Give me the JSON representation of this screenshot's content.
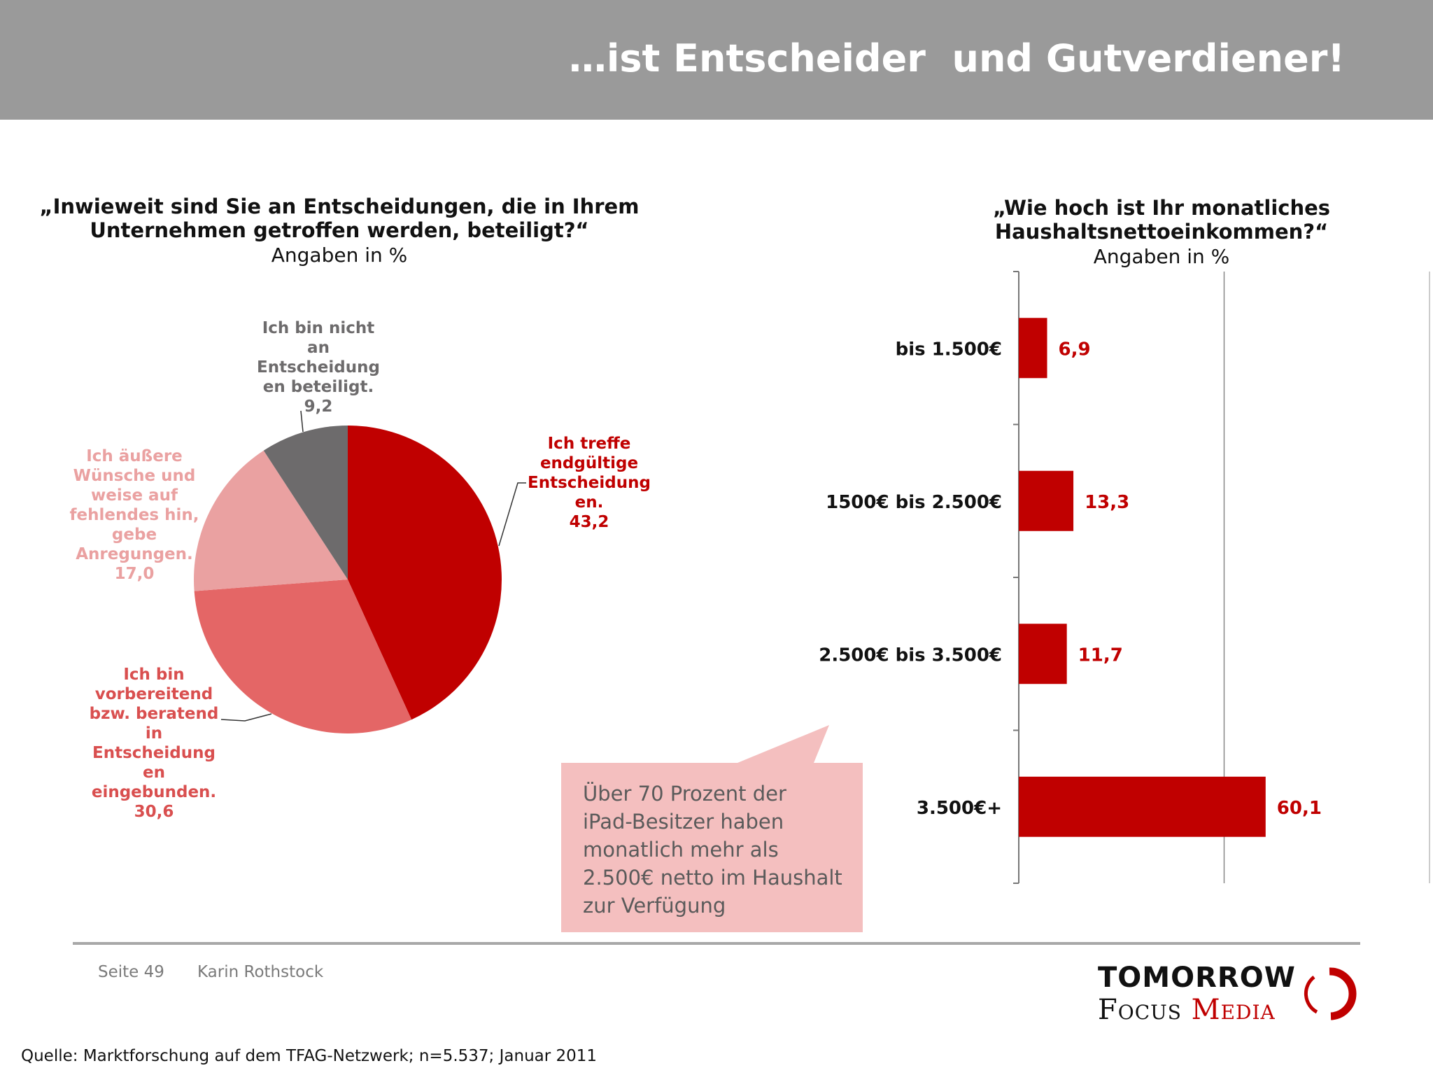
{
  "slide": {
    "title": "…ist Entscheider  und Gutverdiener!"
  },
  "chart_data": [
    {
      "type": "pie",
      "title": "„Inwieweit sind Sie an Entscheidungen, die in Ihrem Unternehmen getroffen werden, beteiligt?“",
      "title_lines": [
        "„Inwieweit sind Sie an Entscheidungen, die in Ihrem",
        "Unternehmen getroffen werden, beteiligt?“"
      ],
      "subtitle": "Angaben in %",
      "slices": [
        {
          "label_lines": [
            "Ich treffe",
            "endgültige",
            "Entscheidung",
            "en."
          ],
          "value": 43.2,
          "value_label": "43,2",
          "color": "#c00000",
          "label_color": "#c00000"
        },
        {
          "label_lines": [
            "Ich bin",
            "vorbereitend",
            "bzw. beratend",
            "in",
            "Entscheidung",
            "en",
            "eingebunden."
          ],
          "value": 30.6,
          "value_label": "30,6",
          "color": "#e46666",
          "label_color": "#d94f4f"
        },
        {
          "label_lines": [
            "Ich äußere",
            "Wünsche und",
            "weise auf",
            "fehlendes hin,",
            "gebe",
            "Anregungen."
          ],
          "value": 17.0,
          "value_label": "17,0",
          "color": "#eaa1a1",
          "label_color": "#eaa1a1"
        },
        {
          "label_lines": [
            "Ich bin nicht",
            "an",
            "Entscheidung",
            "en beteiligt."
          ],
          "value": 9.2,
          "value_label": "9,2",
          "color": "#6d6b6c",
          "label_color": "#6d6b6c"
        }
      ]
    },
    {
      "type": "bar",
      "orientation": "horizontal",
      "title": "„Wie hoch ist Ihr monatliches Haushaltsnettoeinkommen?“",
      "title_lines": [
        "„Wie hoch ist Ihr monatliches",
        "Haushaltsnettoeinkommen?“"
      ],
      "subtitle": "Angaben in %",
      "categories": [
        "bis 1.500€",
        "1500€ bis 2.500€",
        "2.500€ bis 3.500€",
        "3.500€+"
      ],
      "values": [
        6.9,
        13.3,
        11.7,
        60.1
      ],
      "value_labels": [
        "6,9",
        "13,3",
        "11,7",
        "60,1"
      ],
      "xlim": [
        0,
        100
      ],
      "color": "#c00000"
    }
  ],
  "callout": {
    "lines": [
      "Über 70 Prozent der",
      "iPad-Besitzer haben",
      "monatlich mehr als",
      "2.500€ netto im Haushalt",
      "zur Verfügung"
    ]
  },
  "footer": {
    "page": "Seite 49",
    "author": "Karin Rothstock",
    "source": "Quelle: Marktforschung auf dem TFAG-Netzwerk; n=5.537; Januar 2011"
  },
  "logo": {
    "line1": "TOMORROW",
    "line2a": "Focus",
    "line2b": "Media"
  }
}
